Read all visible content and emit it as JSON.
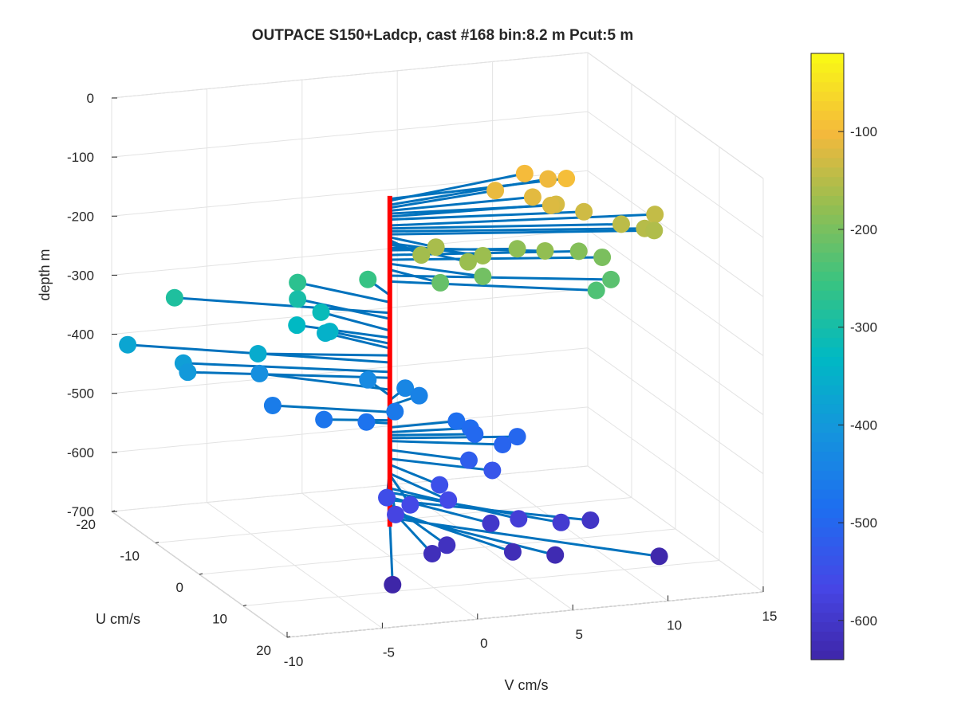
{
  "chart_data": {
    "type": "scatter",
    "title": "OUTPACE S150+Ladcp, cast #168 bin:8.2 m  Pcut:5 m",
    "xlabel": "U cm/s",
    "ylabel": "V cm/s",
    "zlabel": "depth m",
    "xlim": [
      -20,
      20
    ],
    "ylim": [
      -10,
      15
    ],
    "zlim": [
      -700,
      0
    ],
    "x_ticks": [
      "-20",
      "-10",
      "0",
      "10",
      "20"
    ],
    "y_ticks": [
      "-10",
      "-5",
      "0",
      "5",
      "10",
      "15"
    ],
    "z_ticks": [
      "0",
      "-100",
      "-200",
      "-300",
      "-400",
      "-500",
      "-600",
      "-700"
    ],
    "grid": true,
    "view": "3d",
    "stem_color": "#0072BD",
    "profile_color": "#FF0000",
    "colormap": "parula",
    "colorbar": {
      "limits": [
        -640,
        -20
      ],
      "ticks": [
        "-100",
        "-200",
        "-300",
        "-400",
        "-500",
        "-600"
      ]
    },
    "profile_depth_range": [
      -90,
      -650
    ],
    "points": [
      {
        "u": -1,
        "v": 9.5,
        "depth": -95
      },
      {
        "u": -4,
        "v": 8,
        "depth": -98
      },
      {
        "u": -3,
        "v": 9,
        "depth": -105
      },
      {
        "u": -2,
        "v": 6,
        "depth": -110
      },
      {
        "u": 0,
        "v": 7.5,
        "depth": -115
      },
      {
        "u": 2,
        "v": 8,
        "depth": -120
      },
      {
        "u": 1,
        "v": 8.5,
        "depth": -125
      },
      {
        "u": 3,
        "v": 9.5,
        "depth": -130
      },
      {
        "u": 4,
        "v": 13,
        "depth": -140
      },
      {
        "u": 5,
        "v": 11,
        "depth": -145
      },
      {
        "u": 6,
        "v": 12,
        "depth": -150
      },
      {
        "u": 6,
        "v": 12.5,
        "depth": -155
      },
      {
        "u": 4,
        "v": 1.5,
        "depth": -160
      },
      {
        "u": 5,
        "v": 0.5,
        "depth": -165
      },
      {
        "u": 6,
        "v": 3.5,
        "depth": -170
      },
      {
        "u": 7,
        "v": 2.5,
        "depth": -172
      },
      {
        "u": 5,
        "v": 7,
        "depth": -178
      },
      {
        "u": 3,
        "v": 6,
        "depth": -182
      },
      {
        "u": 4,
        "v": 9,
        "depth": -190
      },
      {
        "u": 5,
        "v": 10,
        "depth": -198
      },
      {
        "u": 6,
        "v": 3.5,
        "depth": -205
      },
      {
        "u": 5,
        "v": 1.5,
        "depth": -215
      },
      {
        "u": 7,
        "v": 10,
        "depth": -225
      },
      {
        "u": 8,
        "v": 9,
        "depth": -235
      },
      {
        "u": -5,
        "v": 0,
        "depth": -258
      },
      {
        "u": -8,
        "v": -3,
        "depth": -270
      },
      {
        "u": -10,
        "v": -9,
        "depth": -288
      },
      {
        "u": -8,
        "v": -3,
        "depth": -298
      },
      {
        "u": -7,
        "v": -2,
        "depth": -318
      },
      {
        "u": -6,
        "v": -3.5,
        "depth": -330
      },
      {
        "u": -5,
        "v": -2,
        "depth": -340
      },
      {
        "u": -6,
        "v": -2,
        "depth": -348
      },
      {
        "u": -4,
        "v": -6,
        "depth": -360
      },
      {
        "u": -12,
        "v": -11,
        "depth": -372
      },
      {
        "u": -8,
        "v": -9,
        "depth": -388
      },
      {
        "u": -7,
        "v": -9,
        "depth": -398
      },
      {
        "u": -8,
        "v": -5,
        "depth": -418
      },
      {
        "u": -5,
        "v": 0,
        "depth": -428
      },
      {
        "u": -3,
        "v": 1.5,
        "depth": -436
      },
      {
        "u": -2,
        "v": 2,
        "depth": -445
      },
      {
        "u": -5,
        "v": -5,
        "depth": -456
      },
      {
        "u": -1,
        "v": 0.5,
        "depth": -462
      },
      {
        "u": -2,
        "v": -3,
        "depth": -470
      },
      {
        "u": -1,
        "v": -1,
        "depth": -475
      },
      {
        "u": 0,
        "v": 3.5,
        "depth": -482
      },
      {
        "u": 1,
        "v": 4,
        "depth": -490
      },
      {
        "u": 2,
        "v": 4,
        "depth": -495
      },
      {
        "u": 3,
        "v": 6,
        "depth": -500
      },
      {
        "u": 4,
        "v": 5,
        "depth": -505
      },
      {
        "u": 5,
        "v": 3,
        "depth": -520
      },
      {
        "u": 6,
        "v": 4,
        "depth": -535
      },
      {
        "u": 7,
        "v": 1,
        "depth": -545
      },
      {
        "u": 8,
        "v": -2,
        "depth": -552
      },
      {
        "u": 9,
        "v": 1,
        "depth": -560
      },
      {
        "u": 9,
        "v": -1,
        "depth": -562
      },
      {
        "u": 10,
        "v": -2,
        "depth": -570
      },
      {
        "u": 12,
        "v": 4,
        "depth": -585
      },
      {
        "u": 13,
        "v": 6,
        "depth": -592
      },
      {
        "u": 10,
        "v": 3,
        "depth": -600
      },
      {
        "u": 11,
        "v": 8,
        "depth": -605
      },
      {
        "u": 13,
        "v": 0,
        "depth": -612
      },
      {
        "u": 14,
        "v": -1,
        "depth": -618
      },
      {
        "u": 15,
        "v": 3,
        "depth": -622
      },
      {
        "u": 16,
        "v": 5,
        "depth": -628
      },
      {
        "u": 18,
        "v": 10,
        "depth": -635
      },
      {
        "u": 18,
        "v": -4,
        "depth": -640
      }
    ]
  }
}
